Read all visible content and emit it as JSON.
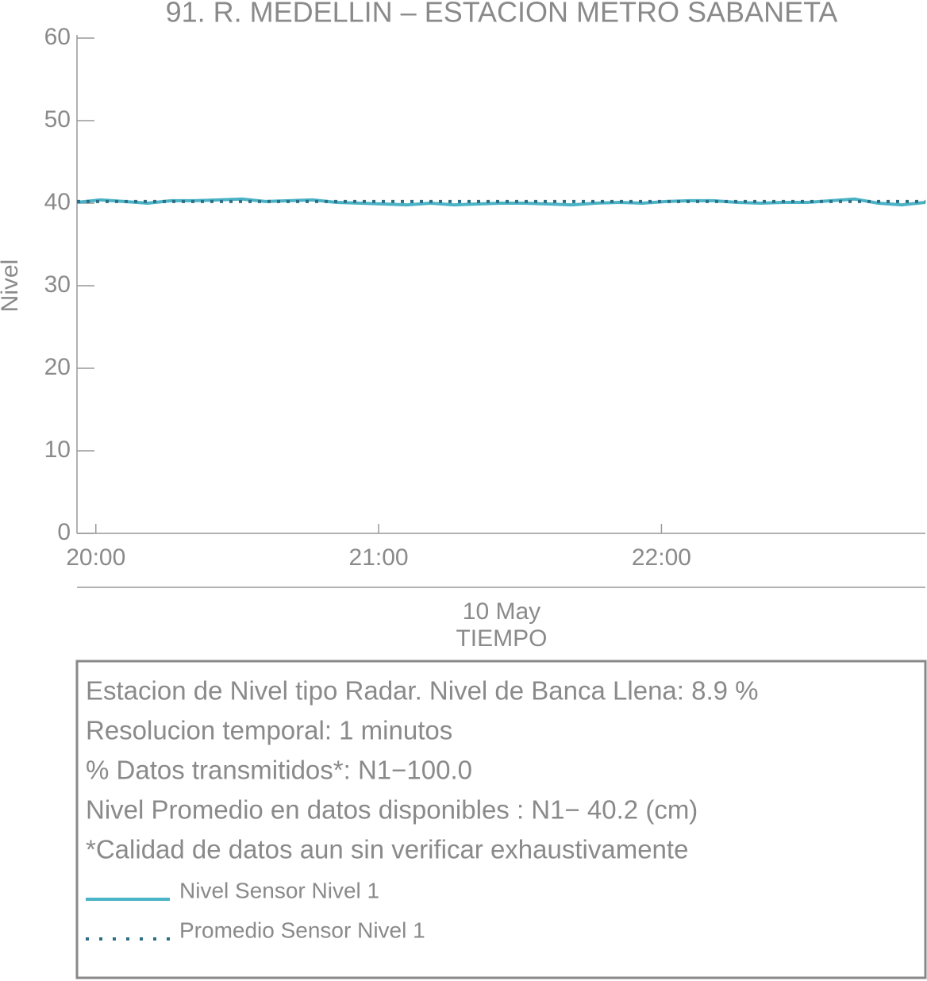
{
  "chart_data": {
    "type": "line",
    "title": "91. R. MEDELLIN – ESTACION METRO SABANETA",
    "ylabel": "Nivel",
    "xlabel": "TIEMPO",
    "date_label": "10 May",
    "x": [
      "19:56",
      "20:01",
      "20:06",
      "20:11",
      "20:16",
      "20:21",
      "20:26",
      "20:31",
      "20:36",
      "20:41",
      "20:46",
      "20:51",
      "20:56",
      "21:01",
      "21:06",
      "21:11",
      "21:16",
      "21:21",
      "21:26",
      "21:31",
      "21:36",
      "21:41",
      "21:46",
      "21:51",
      "21:56",
      "22:01",
      "22:06",
      "22:11",
      "22:16",
      "22:21",
      "22:26",
      "22:31",
      "22:36",
      "22:41",
      "22:46",
      "22:51",
      "22:56"
    ],
    "xlim": [
      "19:56",
      "22:56"
    ],
    "xticks": [
      "20:00",
      "21:00",
      "22:00"
    ],
    "ylim": [
      0,
      60
    ],
    "yticks": [
      0,
      10,
      20,
      30,
      40,
      50,
      60
    ],
    "series": [
      {
        "name": "Nivel Sensor Nivel 1",
        "color": "#4ab3c6",
        "style": "solid",
        "values": [
          40.1,
          40.4,
          40.2,
          40.0,
          40.3,
          40.3,
          40.4,
          40.5,
          40.2,
          40.3,
          40.4,
          40.1,
          40.0,
          39.9,
          39.8,
          40.0,
          39.8,
          39.9,
          40.0,
          40.0,
          39.9,
          39.8,
          40.0,
          40.1,
          40.0,
          40.2,
          40.3,
          40.3,
          40.1,
          40.0,
          40.1,
          40.1,
          40.3,
          40.5,
          40.0,
          39.8,
          40.1
        ]
      },
      {
        "name": "Promedio Sensor Nivel 1",
        "color": "#2f6f86",
        "style": "dotted",
        "values": [
          40.2,
          40.2,
          40.2,
          40.2,
          40.2,
          40.2,
          40.2,
          40.2,
          40.2,
          40.2,
          40.2,
          40.2,
          40.2,
          40.2,
          40.2,
          40.2,
          40.2,
          40.2,
          40.2,
          40.2,
          40.2,
          40.2,
          40.2,
          40.2,
          40.2,
          40.2,
          40.2,
          40.2,
          40.2,
          40.2,
          40.2,
          40.2,
          40.2,
          40.2,
          40.2,
          40.2,
          40.2
        ]
      }
    ],
    "notes": [
      "Estacion de Nivel tipo Radar. Nivel de Banca Llena:  8.9 %",
      "Resolucion temporal: 1 minutos",
      "% Datos transmitidos*: N1−100.0",
      "Nivel Promedio en datos disponibles : N1− 40.2 (cm)",
      "*Calidad de datos aun sin verificar exhaustivamente"
    ]
  }
}
